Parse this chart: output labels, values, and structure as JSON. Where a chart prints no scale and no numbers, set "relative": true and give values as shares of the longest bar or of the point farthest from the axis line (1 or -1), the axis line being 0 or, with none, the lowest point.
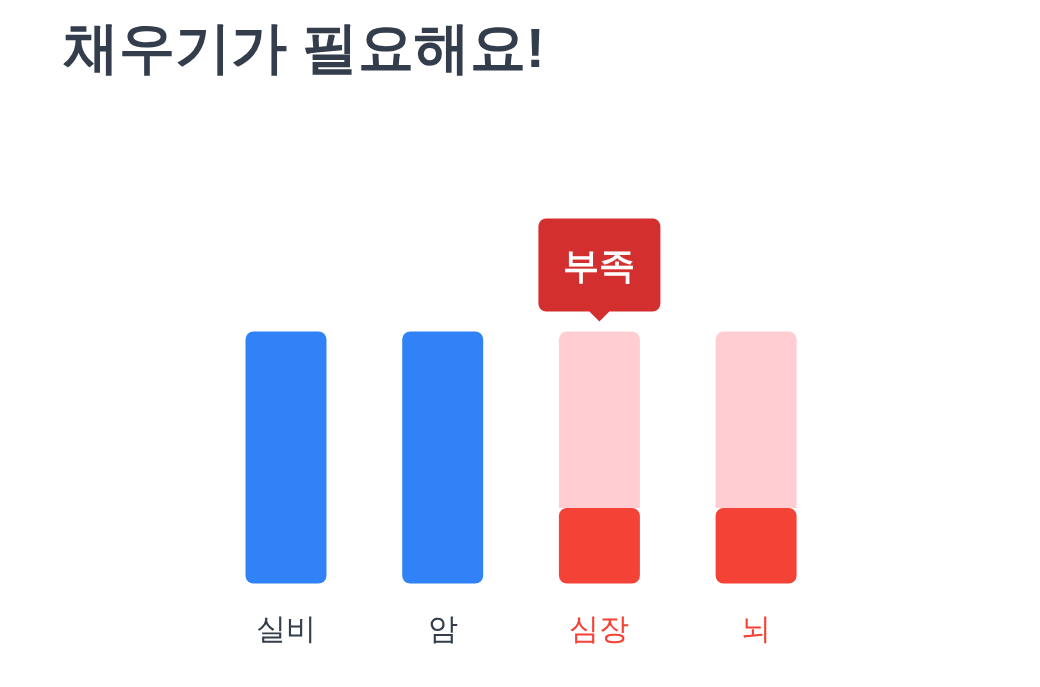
{
  "chart_data": {
    "type": "bar",
    "title": "채우기가 필요해요!",
    "categories": [
      "실비",
      "암",
      "심장",
      "뇌"
    ],
    "stacked": true,
    "relative": true,
    "series": [
      {
        "colors": [
          "#3182f6",
          "#3182f6",
          "#f44336",
          "#f44336"
        ],
        "values": [
          1,
          1,
          0.3,
          0.3
        ]
      },
      {
        "color": "#ffcdd2",
        "values": [
          null,
          null,
          0.7,
          0.7
        ]
      }
    ],
    "annotations": [
      {
        "text": "부족",
        "x": "심장",
        "y": 1
      }
    ]
  }
}
